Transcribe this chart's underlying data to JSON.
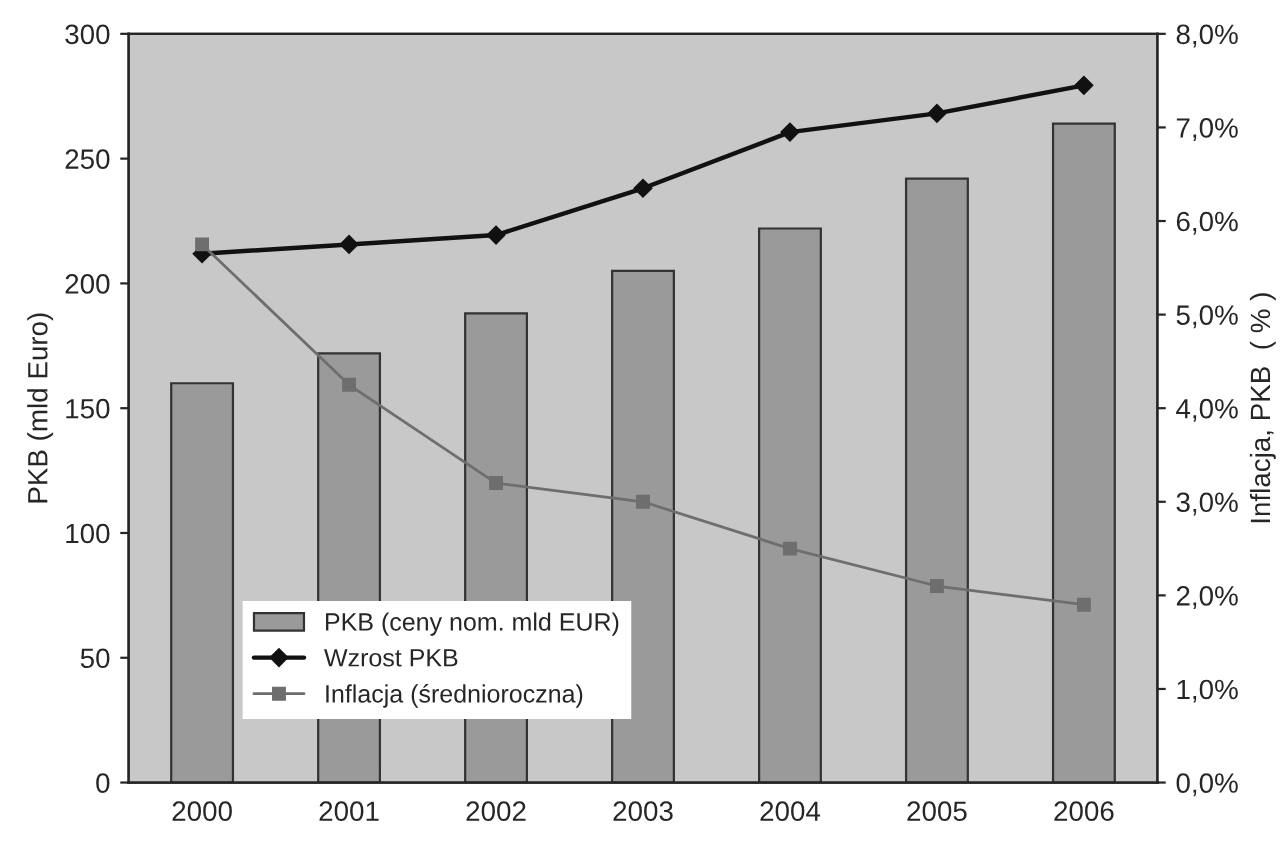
{
  "chart_data": {
    "type": "bar",
    "categories": [
      "2000",
      "2001",
      "2002",
      "2003",
      "2004",
      "2005",
      "2006"
    ],
    "ylabel": "PKB (mld Euro)",
    "y2label": "Inflacja, PKB  ( % )",
    "ylim": [
      0,
      300
    ],
    "yticks": [
      0,
      50,
      100,
      150,
      200,
      250,
      300
    ],
    "y2lim": [
      0,
      8
    ],
    "y2ticks": [
      {
        "value": 0,
        "label": "0,0%"
      },
      {
        "value": 1,
        "label": "1,0%"
      },
      {
        "value": 2,
        "label": "2,0%"
      },
      {
        "value": 3,
        "label": "3,0%"
      },
      {
        "value": 4,
        "label": "4,0%"
      },
      {
        "value": 5,
        "label": "5,0%"
      },
      {
        "value": 6,
        "label": "6,0%"
      },
      {
        "value": 7,
        "label": "7,0%"
      },
      {
        "value": 8,
        "label": "8,0%"
      }
    ],
    "legend": "bottom left",
    "series": [
      {
        "name": "PKB (ceny nom. mld EUR)",
        "color": "#9a9a9a",
        "values": [
          160,
          172,
          188,
          205,
          222,
          242,
          264
        ]
      },
      {
        "name": "Wzrost PKB",
        "type": "line",
        "axis": "y2",
        "color": "#111111",
        "marker": "diamond",
        "values": [
          5.65,
          5.75,
          5.85,
          6.35,
          6.95,
          7.15,
          7.45
        ]
      },
      {
        "name": "Inflacja (średnioroczna)",
        "type": "line",
        "axis": "y2",
        "color": "#6e6e6e",
        "marker": "square",
        "values": [
          5.75,
          4.25,
          3.2,
          3.0,
          2.5,
          2.1,
          1.9
        ]
      }
    ]
  }
}
